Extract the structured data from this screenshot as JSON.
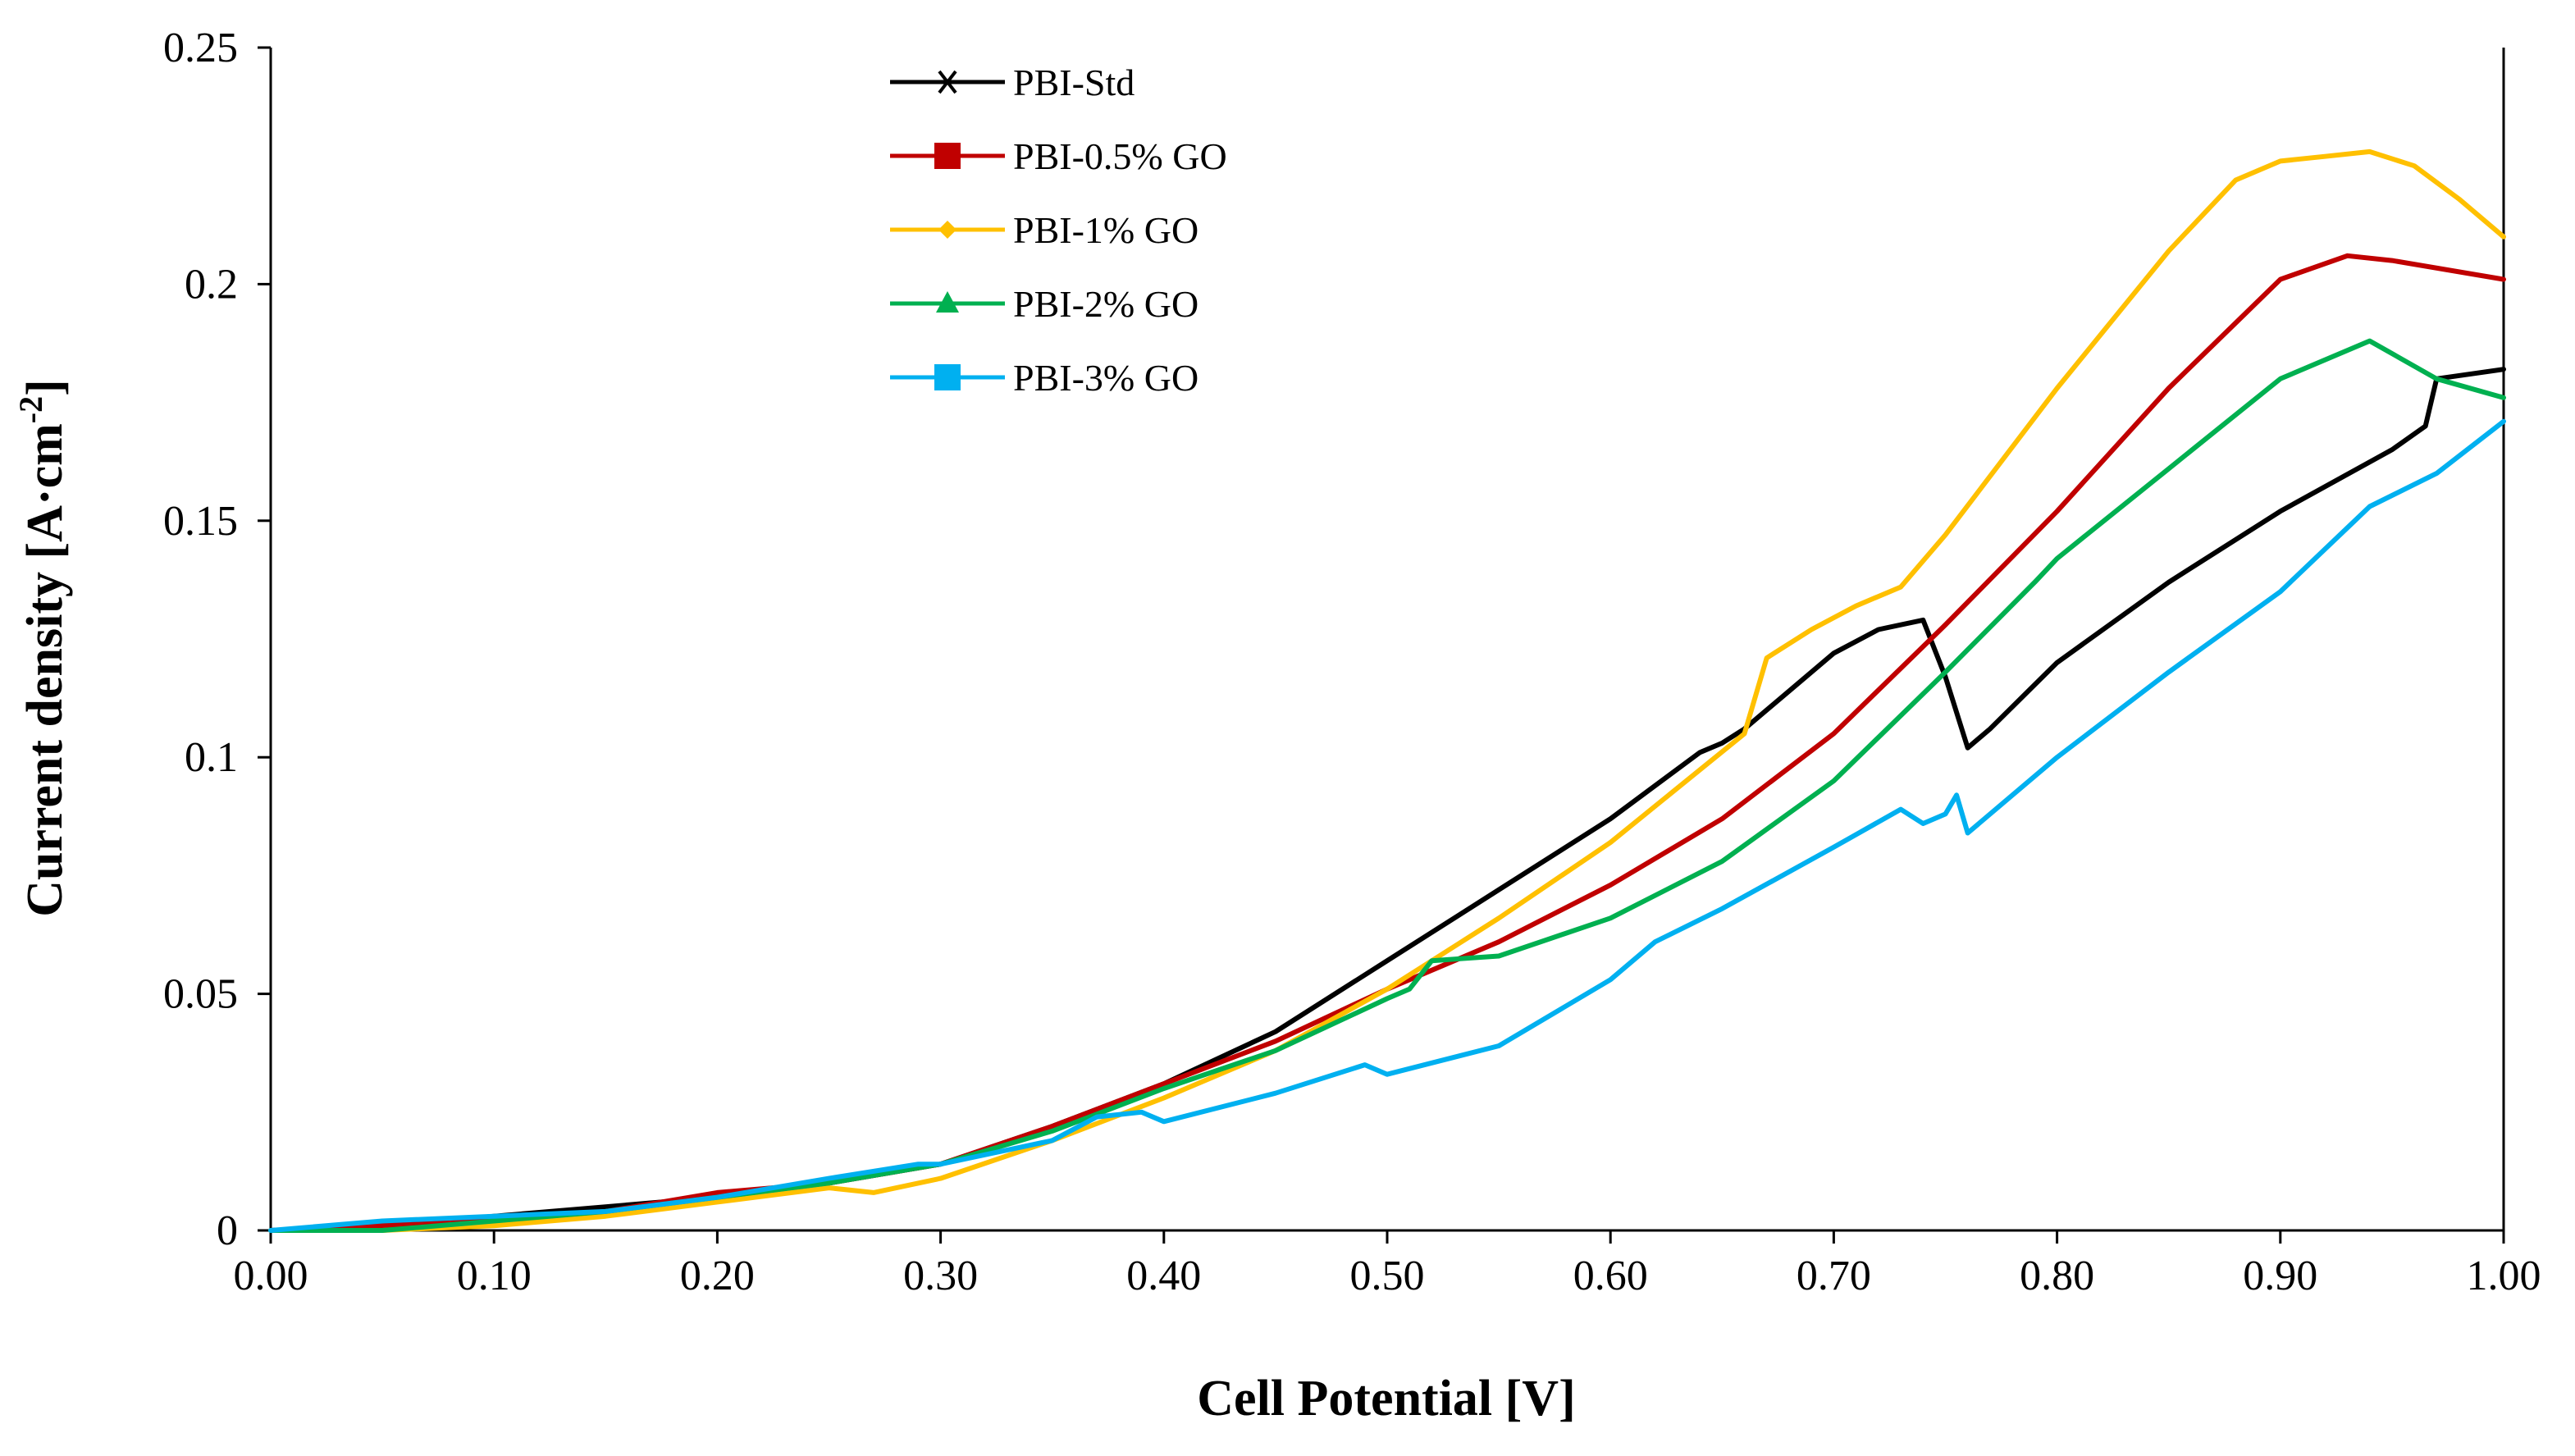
{
  "chart_data": {
    "type": "line",
    "title": "",
    "xlabel": "Cell Potential [V]",
    "ylabel_main": "Current density [A·cm",
    "ylabel_exp": "-2",
    "ylabel_close": "]",
    "xlim": [
      0,
      1.0
    ],
    "ylim": [
      0,
      0.25
    ],
    "x_ticks": [
      0,
      0.1,
      0.2,
      0.3,
      0.4,
      0.5,
      0.6,
      0.7,
      0.8,
      0.9,
      1.0
    ],
    "x_tick_labels": [
      "0.00",
      "0.10",
      "0.20",
      "0.30",
      "0.40",
      "0.50",
      "0.60",
      "0.70",
      "0.80",
      "0.90",
      "1.00"
    ],
    "y_ticks": [
      0,
      0.05,
      0.1,
      0.15,
      0.2,
      0.25
    ],
    "y_tick_labels": [
      "0",
      "0.05",
      "0.1",
      "0.15",
      "0.2",
      "0.25"
    ],
    "grid": false,
    "legend_position": "top-center",
    "series": [
      {
        "name": "PBI-Std",
        "color": "#000000",
        "marker": "asterisk",
        "points": [
          [
            0,
            0
          ],
          [
            0.05,
            0.001
          ],
          [
            0.1,
            0.003
          ],
          [
            0.15,
            0.005
          ],
          [
            0.2,
            0.007
          ],
          [
            0.25,
            0.01
          ],
          [
            0.3,
            0.014
          ],
          [
            0.35,
            0.022
          ],
          [
            0.4,
            0.031
          ],
          [
            0.45,
            0.042
          ],
          [
            0.5,
            0.057
          ],
          [
            0.55,
            0.072
          ],
          [
            0.6,
            0.087
          ],
          [
            0.64,
            0.101
          ],
          [
            0.65,
            0.103
          ],
          [
            0.66,
            0.106
          ],
          [
            0.68,
            0.114
          ],
          [
            0.7,
            0.122
          ],
          [
            0.72,
            0.127
          ],
          [
            0.74,
            0.129
          ],
          [
            0.75,
            0.117
          ],
          [
            0.76,
            0.102
          ],
          [
            0.77,
            0.106
          ],
          [
            0.8,
            0.12
          ],
          [
            0.85,
            0.137
          ],
          [
            0.9,
            0.152
          ],
          [
            0.95,
            0.165
          ],
          [
            0.965,
            0.17
          ],
          [
            0.97,
            0.18
          ],
          [
            1.0,
            0.182
          ]
        ]
      },
      {
        "name": "PBI-0.5% GO",
        "color": "#c00000",
        "marker": "square",
        "points": [
          [
            0,
            0
          ],
          [
            0.05,
            0.001
          ],
          [
            0.1,
            0.002
          ],
          [
            0.15,
            0.004
          ],
          [
            0.2,
            0.008
          ],
          [
            0.25,
            0.01
          ],
          [
            0.3,
            0.014
          ],
          [
            0.35,
            0.022
          ],
          [
            0.4,
            0.031
          ],
          [
            0.45,
            0.04
          ],
          [
            0.5,
            0.051
          ],
          [
            0.55,
            0.061
          ],
          [
            0.6,
            0.073
          ],
          [
            0.65,
            0.087
          ],
          [
            0.7,
            0.105
          ],
          [
            0.75,
            0.128
          ],
          [
            0.8,
            0.152
          ],
          [
            0.85,
            0.178
          ],
          [
            0.9,
            0.201
          ],
          [
            0.93,
            0.206
          ],
          [
            0.95,
            0.205
          ],
          [
            1.0,
            0.201
          ]
        ]
      },
      {
        "name": "PBI-1% GO",
        "color": "#ffc000",
        "marker": "diamond",
        "points": [
          [
            0,
            0
          ],
          [
            0.05,
            0.0
          ],
          [
            0.1,
            0.001
          ],
          [
            0.15,
            0.003
          ],
          [
            0.2,
            0.006
          ],
          [
            0.25,
            0.009
          ],
          [
            0.27,
            0.008
          ],
          [
            0.3,
            0.011
          ],
          [
            0.35,
            0.019
          ],
          [
            0.4,
            0.028
          ],
          [
            0.45,
            0.038
          ],
          [
            0.5,
            0.051
          ],
          [
            0.55,
            0.066
          ],
          [
            0.6,
            0.082
          ],
          [
            0.66,
            0.105
          ],
          [
            0.67,
            0.121
          ],
          [
            0.69,
            0.127
          ],
          [
            0.71,
            0.132
          ],
          [
            0.73,
            0.136
          ],
          [
            0.75,
            0.147
          ],
          [
            0.8,
            0.178
          ],
          [
            0.85,
            0.207
          ],
          [
            0.88,
            0.222
          ],
          [
            0.9,
            0.226
          ],
          [
            0.92,
            0.227
          ],
          [
            0.94,
            0.228
          ],
          [
            0.96,
            0.225
          ],
          [
            0.98,
            0.218
          ],
          [
            1.0,
            0.21
          ]
        ]
      },
      {
        "name": "PBI-2% GO",
        "color": "#00b050",
        "marker": "triangle",
        "points": [
          [
            0,
            0
          ],
          [
            0.05,
            0.0
          ],
          [
            0.1,
            0.002
          ],
          [
            0.15,
            0.004
          ],
          [
            0.2,
            0.007
          ],
          [
            0.25,
            0.01
          ],
          [
            0.3,
            0.014
          ],
          [
            0.35,
            0.021
          ],
          [
            0.4,
            0.03
          ],
          [
            0.45,
            0.038
          ],
          [
            0.5,
            0.049
          ],
          [
            0.51,
            0.051
          ],
          [
            0.52,
            0.057
          ],
          [
            0.55,
            0.058
          ],
          [
            0.6,
            0.066
          ],
          [
            0.65,
            0.078
          ],
          [
            0.7,
            0.095
          ],
          [
            0.75,
            0.118
          ],
          [
            0.79,
            0.137
          ],
          [
            0.8,
            0.142
          ],
          [
            0.85,
            0.161
          ],
          [
            0.9,
            0.18
          ],
          [
            0.94,
            0.188
          ],
          [
            0.97,
            0.18
          ],
          [
            1.0,
            0.176
          ]
        ]
      },
      {
        "name": "PBI-3% GO",
        "color": "#00b0f0",
        "marker": "square",
        "points": [
          [
            0,
            0
          ],
          [
            0.05,
            0.002
          ],
          [
            0.1,
            0.003
          ],
          [
            0.15,
            0.004
          ],
          [
            0.2,
            0.007
          ],
          [
            0.25,
            0.011
          ],
          [
            0.29,
            0.014
          ],
          [
            0.3,
            0.014
          ],
          [
            0.35,
            0.019
          ],
          [
            0.37,
            0.024
          ],
          [
            0.39,
            0.025
          ],
          [
            0.4,
            0.023
          ],
          [
            0.45,
            0.029
          ],
          [
            0.49,
            0.035
          ],
          [
            0.5,
            0.033
          ],
          [
            0.55,
            0.039
          ],
          [
            0.6,
            0.053
          ],
          [
            0.62,
            0.061
          ],
          [
            0.65,
            0.068
          ],
          [
            0.7,
            0.081
          ],
          [
            0.73,
            0.089
          ],
          [
            0.74,
            0.086
          ],
          [
            0.75,
            0.088
          ],
          [
            0.755,
            0.092
          ],
          [
            0.76,
            0.084
          ],
          [
            0.8,
            0.1
          ],
          [
            0.85,
            0.118
          ],
          [
            0.9,
            0.135
          ],
          [
            0.94,
            0.153
          ],
          [
            0.97,
            0.16
          ],
          [
            1.0,
            0.171
          ]
        ]
      }
    ]
  }
}
